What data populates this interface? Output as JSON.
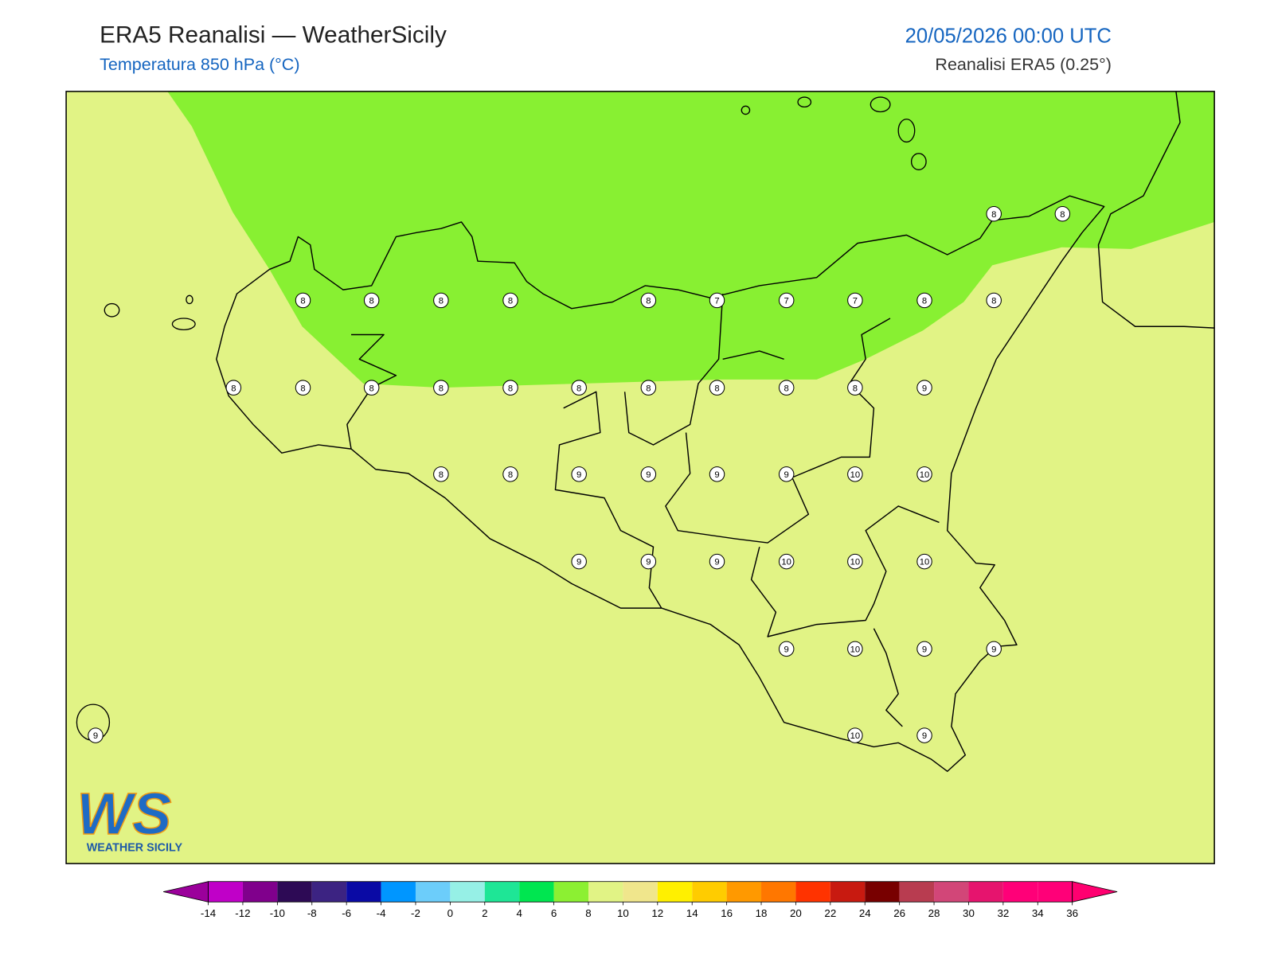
{
  "header": {
    "title": "ERA5 Reanalisi — WeatherSicily",
    "subtitle": "Temperatura 850 hPa (°C)",
    "datetime": "20/05/2026 00:00 UTC",
    "source": "Reanalisi ERA5 (0.25°)"
  },
  "map": {
    "station_values": [
      8,
      8,
      8,
      8,
      8,
      8,
      8,
      7,
      7,
      7,
      8,
      8,
      8,
      8,
      8,
      8,
      8,
      8,
      8,
      8,
      8,
      8,
      9,
      8,
      8,
      9,
      9,
      9,
      9,
      10,
      10,
      9,
      9,
      9,
      10,
      10,
      10,
      9,
      10,
      9,
      9,
      9,
      10,
      9
    ],
    "field_colors": [
      "#e1f385",
      "#88f032"
    ]
  },
  "colorbar": {
    "ticks": [
      -14,
      -12,
      -10,
      -8,
      -6,
      -4,
      -2,
      0,
      2,
      4,
      6,
      8,
      10,
      12,
      14,
      16,
      18,
      20,
      22,
      24,
      26,
      28,
      30,
      32,
      34,
      36
    ],
    "colors": [
      "#c000c8",
      "#80008c",
      "#2d0a55",
      "#3c2382",
      "#0a0aa5",
      "#0096ff",
      "#6ccdfa",
      "#96f0e6",
      "#1ee696",
      "#00e650",
      "#8cf032",
      "#e1f385",
      "#f0e68c",
      "#fff000",
      "#ffcc00",
      "#ff9900",
      "#ff7700",
      "#ff3300",
      "#c81a10",
      "#780000",
      "#b83c50",
      "#d24678",
      "#e6146e",
      "#ff0078",
      "#ff0078"
    ],
    "under_color": "#9b009b",
    "over_color": "#ff0070"
  },
  "logo": {
    "mark": "WS",
    "text": "WEATHER SICILY"
  }
}
